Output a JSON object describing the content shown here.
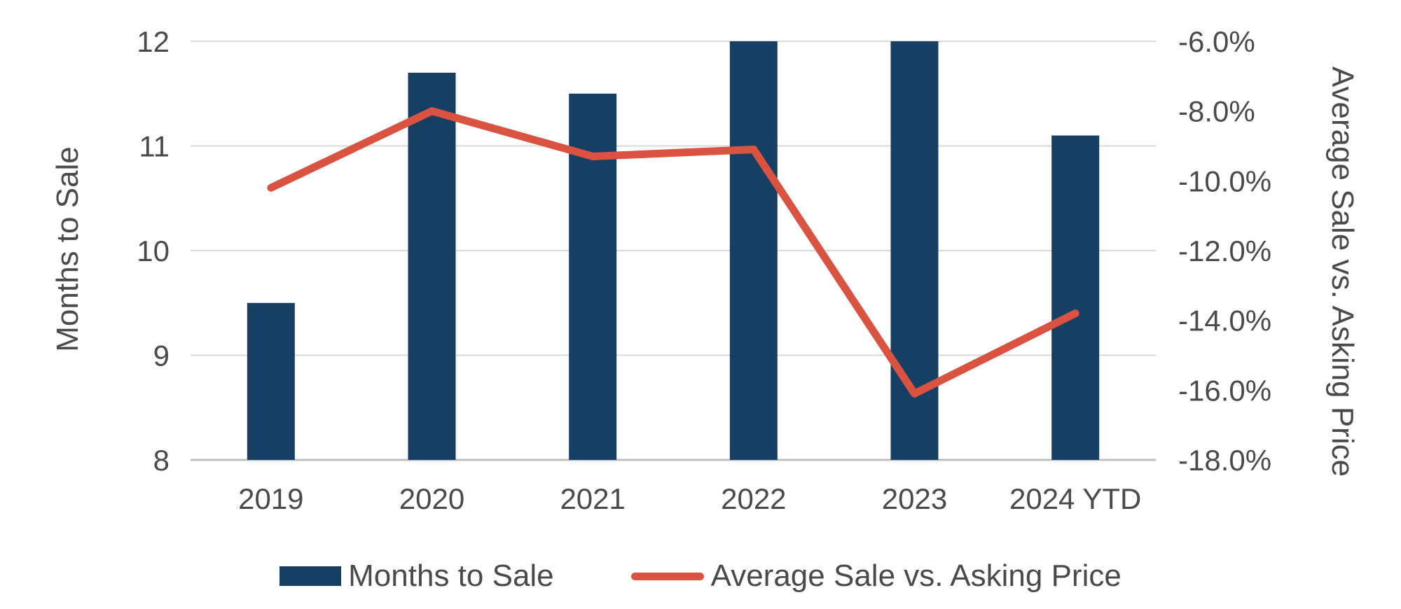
{
  "chart_data": {
    "type": "combo",
    "categories": [
      "2019",
      "2020",
      "2021",
      "2022",
      "2023",
      "2024 YTD"
    ],
    "series": [
      {
        "name": "Months to Sale",
        "type": "bar",
        "axis": "left",
        "values": [
          9.5,
          11.7,
          11.5,
          12.0,
          12.0,
          11.1
        ],
        "color": "#173f63"
      },
      {
        "name": "Average Sale vs. Asking Price",
        "type": "line",
        "axis": "right",
        "values": [
          -10.2,
          -8.0,
          -9.3,
          -9.1,
          -16.1,
          -13.8
        ],
        "color": "#d95340"
      }
    ],
    "left_axis": {
      "title": "Months to Sale",
      "min": 8,
      "max": 12,
      "tick_values": [
        12,
        11,
        10,
        9,
        8
      ],
      "tick_labels": [
        "12",
        "11",
        "10",
        "9",
        "8"
      ]
    },
    "right_axis": {
      "title": "Average Sale vs. Asking Price",
      "min": -18,
      "max": -6,
      "tick_values": [
        -6,
        -8,
        -10,
        -12,
        -14,
        -16,
        -18
      ],
      "tick_labels": [
        "-6.0%",
        "-8.0%",
        "-10.0%",
        "-12.0%",
        "-14.0%",
        "-16.0%",
        "-18.0%"
      ]
    },
    "grid": true,
    "legend_position": "bottom",
    "colors": {
      "grid": "#d9d9d9",
      "axis_line": "#bfbfbf",
      "text": "#4a4a4a",
      "background": "#ffffff"
    }
  },
  "legend": {
    "items": [
      {
        "label": "Months to Sale",
        "swatch": "bar"
      },
      {
        "label": "Average Sale vs. Asking Price",
        "swatch": "line"
      }
    ]
  }
}
